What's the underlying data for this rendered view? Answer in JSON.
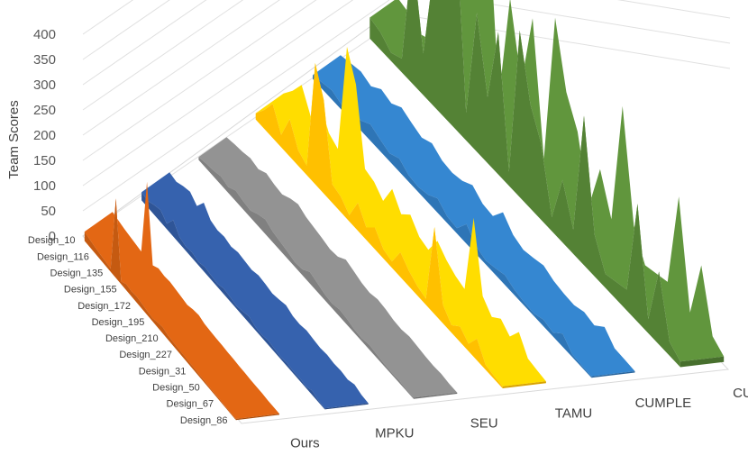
{
  "chart_data": {
    "type": "area",
    "title": "",
    "ylabel": "Team Scores",
    "xlabel": "",
    "ylim": [
      0,
      400
    ],
    "yticks": [
      0,
      50,
      100,
      150,
      200,
      250,
      300,
      350,
      400
    ],
    "depth_labels": [
      "Design_10",
      "Design_116",
      "Design_135",
      "Design_155",
      "Design_172",
      "Design_195",
      "Design_210",
      "Design_227",
      "Design_31",
      "Design_50",
      "Design_67",
      "Design_86"
    ],
    "series": [
      {
        "name": "Ours",
        "color": "#c55a11",
        "values": [
          18,
          15,
          12,
          10,
          8,
          6,
          155,
          5,
          12,
          10,
          12,
          10,
          8,
          6,
          10,
          12,
          8,
          7,
          6,
          6,
          5,
          5,
          4,
          4,
          3,
          3,
          3,
          2,
          2,
          2
        ]
      },
      {
        "name": "MPKU",
        "color": "#2f5597",
        "values": [
          15,
          12,
          18,
          22,
          10,
          30,
          12,
          8,
          10,
          6,
          10,
          8,
          6,
          10,
          8,
          5,
          8,
          12,
          6,
          5,
          8,
          6,
          4,
          6,
          4,
          5,
          3,
          8,
          3,
          2
        ]
      },
      {
        "name": "SEU",
        "color": "#808080",
        "values": [
          5,
          8,
          10,
          14,
          10,
          18,
          14,
          12,
          20,
          25,
          18,
          15,
          12,
          8,
          10,
          20,
          15,
          10,
          8,
          12,
          10,
          6,
          5,
          8,
          6,
          4,
          3,
          4,
          2,
          2
        ]
      },
      {
        "name": "TAMU",
        "color": "#ffc000",
        "values": [
          10,
          30,
          55,
          20,
          60,
          25,
          15,
          195,
          150,
          30,
          25,
          10,
          45,
          20,
          35,
          15,
          10,
          40,
          25,
          15,
          10,
          140,
          30,
          12,
          25,
          12,
          35,
          8,
          5,
          3
        ]
      },
      {
        "name": "CUMPLE",
        "color": "#2e75b6",
        "values": [
          6,
          10,
          14,
          8,
          20,
          15,
          25,
          18,
          12,
          20,
          10,
          8,
          12,
          22,
          10,
          8,
          30,
          12,
          6,
          10,
          15,
          8,
          5,
          4,
          10,
          6,
          20,
          4,
          3,
          2
        ]
      },
      {
        "name": "CUMP",
        "color": "#548235",
        "values": [
          30,
          25,
          12,
          20,
          190,
          60,
          200,
          335,
          310,
          40,
          200,
          95,
          205,
          20,
          240,
          150,
          110,
          20,
          90,
          35,
          215,
          60,
          20,
          25,
          30,
          170,
          20,
          105,
          20,
          8
        ]
      }
    ]
  }
}
